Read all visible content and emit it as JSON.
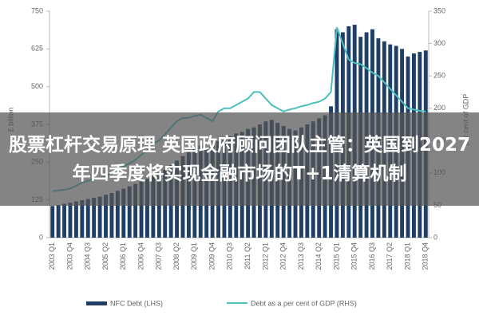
{
  "chart_data": {
    "type": "bar-line",
    "y_label": "£ billion",
    "y2_label": "per cent of GDP",
    "categories": [
      "2003 Q1",
      null,
      null,
      "2003 Q4",
      null,
      null,
      "2004 Q3",
      null,
      null,
      "2005 Q2",
      null,
      null,
      "2006 Q1",
      null,
      null,
      "2006 Q4",
      null,
      null,
      "2007 Q3",
      null,
      null,
      "2008 Q2",
      null,
      null,
      "2009 Q1",
      null,
      null,
      "2009 Q4",
      null,
      null,
      "2010 Q3",
      null,
      null,
      "2011 Q2",
      null,
      null,
      "2012 Q1",
      null,
      null,
      "2012 Q4",
      null,
      null,
      "2013 Q3",
      null,
      null,
      "2014 Q2",
      null,
      null,
      "2015 Q1",
      null,
      null,
      "2015 Q4",
      null,
      null,
      "2016 Q3",
      null,
      null,
      "2017 Q2",
      null,
      null,
      "2018 Q1",
      null,
      null,
      "2018 Q4"
    ],
    "series": [
      {
        "name": "NFC Debt (LHS)",
        "color": "#1f3f66",
        "type": "bar",
        "axis": "y",
        "values": [
          105,
          108,
          112,
          116,
          120,
          124,
          128,
          132,
          136,
          142,
          148,
          155,
          162,
          170,
          178,
          186,
          195,
          205,
          215,
          225,
          240,
          255,
          270,
          285,
          300,
          305,
          300,
          310,
          320,
          325,
          335,
          345,
          350,
          360,
          365,
          375,
          385,
          390,
          380,
          370,
          360,
          355,
          365,
          375,
          385,
          395,
          405,
          435,
          690,
          680,
          700,
          705,
          665,
          680,
          690,
          660,
          650,
          640,
          635,
          625,
          600,
          610,
          615,
          620
        ]
      },
      {
        "name": "Debt as a per cent of GDP (RHS)",
        "color": "#4bbfc0",
        "type": "line",
        "axis": "y2",
        "values": [
          72,
          73,
          74,
          76,
          80,
          85,
          88,
          90,
          92,
          95,
          100,
          105,
          110,
          115,
          120,
          128,
          135,
          145,
          150,
          160,
          170,
          180,
          185,
          185,
          188,
          190,
          185,
          180,
          195,
          200,
          200,
          205,
          210,
          215,
          225,
          225,
          215,
          205,
          200,
          195,
          198,
          200,
          203,
          205,
          208,
          210,
          215,
          225,
          325,
          300,
          275,
          270,
          268,
          262,
          255,
          250,
          240,
          230,
          220,
          210,
          200,
          198,
          196,
          195
        ]
      }
    ],
    "ylim": [
      0,
      750
    ],
    "yticks": [
      0,
      125,
      250,
      375,
      500,
      625,
      750
    ],
    "y2lim": [
      0,
      350
    ],
    "y2ticks": [
      0,
      50,
      100,
      150,
      200,
      250,
      300,
      350
    ],
    "grid": false
  },
  "banner": {
    "text": "股票杠杆交易原理 英国政府顾问团队主管：英国到2027年四季度将实现金融市场的T+1清算机制"
  }
}
